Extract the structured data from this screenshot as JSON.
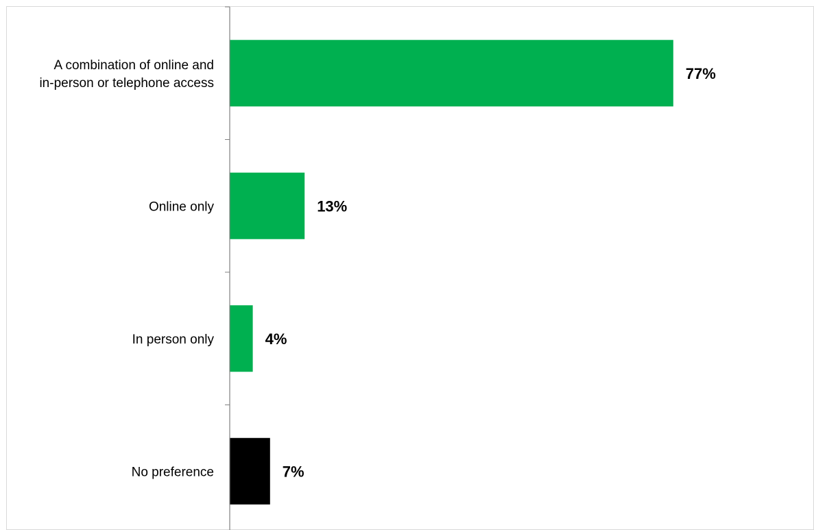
{
  "chart_data": {
    "type": "bar",
    "orientation": "horizontal",
    "categories": [
      [
        "A combination of online and",
        "in-person or telephone access"
      ],
      [
        "Online only"
      ],
      [
        "In person only"
      ],
      [
        "No preference"
      ]
    ],
    "values": [
      77,
      13,
      4,
      7
    ],
    "value_labels": [
      "77%",
      "13%",
      "4%",
      "7%"
    ],
    "bar_colors": [
      "#00B050",
      "#00B050",
      "#00B050",
      "#000000"
    ],
    "xlim": [
      0,
      100
    ],
    "grid": false,
    "legend": "none",
    "title": "",
    "xlabel": "",
    "ylabel": ""
  }
}
